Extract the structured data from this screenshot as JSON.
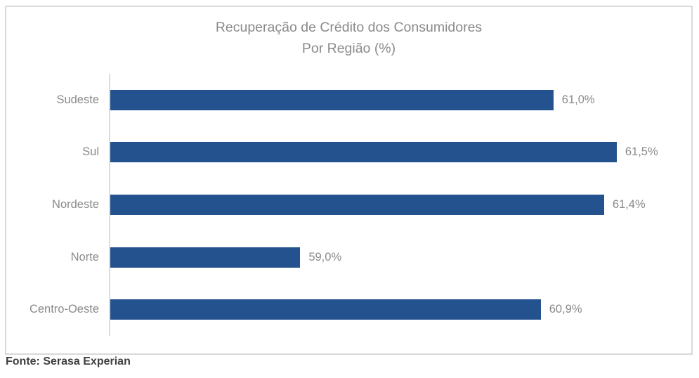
{
  "chart": {
    "title_line1": "Recuperação de Crédito dos Consumidores",
    "title_line2": "Por Região (%)"
  },
  "chart_data": {
    "type": "bar",
    "orientation": "horizontal",
    "title": "Recuperação de Crédito dos Consumidores Por Região (%)",
    "categories": [
      "Sudeste",
      "Sul",
      "Nordeste",
      "Norte",
      "Centro-Oeste"
    ],
    "values": [
      61.0,
      61.5,
      61.4,
      59.0,
      60.9
    ],
    "labels": [
      "61,0%",
      "61,5%",
      "61,4%",
      "59,0%",
      "60,9%"
    ],
    "xlim": [
      57.5,
      62
    ],
    "xlabel": "",
    "ylabel": "",
    "grid": false,
    "legend": false,
    "bar_color": "#23528f",
    "label_color": "#8a8a8a",
    "axis_line_color": "#dcdcdc",
    "border_color": "#d9d9d9"
  },
  "footer": {
    "source": "Fonte: Serasa Experian"
  }
}
